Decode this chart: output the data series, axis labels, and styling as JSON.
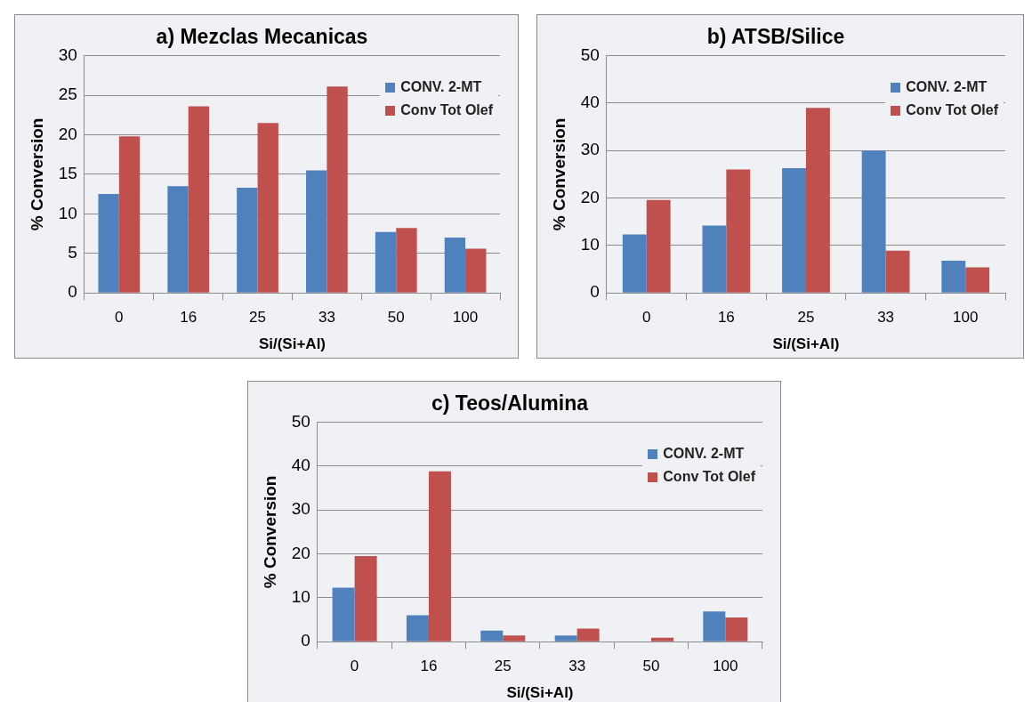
{
  "chart_data": [
    {
      "type": "bar",
      "title": "a) Mezclas Mecanicas",
      "xlabel": "Si/(Si+Al)",
      "ylabel": "% Conversion",
      "categories": [
        "0",
        "16",
        "25",
        "33",
        "50",
        "100"
      ],
      "series": [
        {
          "name": "CONV. 2-MT",
          "color": "#4f81bd",
          "values": [
            12.5,
            13.5,
            13.3,
            15.5,
            7.7,
            7
          ]
        },
        {
          "name": "Conv Tot Olef",
          "color": "#c0504d",
          "values": [
            19.8,
            23.6,
            21.5,
            26.1,
            8.2,
            5.6
          ]
        }
      ],
      "ylim": [
        0,
        30
      ],
      "yticks": [
        0,
        5,
        10,
        15,
        20,
        25,
        30
      ],
      "grid": "y",
      "legend": "top right"
    },
    {
      "type": "bar",
      "title": "b) ATSB/Silice",
      "xlabel": "Si/(Si+Al)",
      "ylabel": "% Conversion",
      "categories": [
        "0",
        "16",
        "25",
        "33",
        "100"
      ],
      "series": [
        {
          "name": "CONV. 2-MT",
          "color": "#4f81bd",
          "values": [
            12.3,
            14.2,
            26.3,
            30,
            6.8
          ]
        },
        {
          "name": "Conv Tot Olef",
          "color": "#c0504d",
          "values": [
            19.6,
            26,
            39,
            8.9,
            5.4
          ]
        }
      ],
      "ylim": [
        0,
        50
      ],
      "yticks": [
        0,
        10,
        20,
        30,
        40,
        50
      ],
      "grid": "y",
      "legend": "top right"
    },
    {
      "type": "bar",
      "title": "c) Teos/Alumina",
      "xlabel": "Si/(Si+Al)",
      "ylabel": "% Conversion",
      "categories": [
        "0",
        "16",
        "25",
        "33",
        "50",
        "100"
      ],
      "series": [
        {
          "name": "CONV. 2-MT",
          "color": "#4f81bd",
          "values": [
            12.3,
            6,
            2.5,
            1.4,
            0,
            6.9
          ]
        },
        {
          "name": "Conv Tot Olef",
          "color": "#c0504d",
          "values": [
            19.5,
            38.8,
            1.4,
            3,
            0.9,
            5.5
          ]
        }
      ],
      "ylim": [
        0,
        50
      ],
      "yticks": [
        0,
        10,
        20,
        30,
        40,
        50
      ],
      "grid": "y",
      "legend": "top right"
    }
  ]
}
